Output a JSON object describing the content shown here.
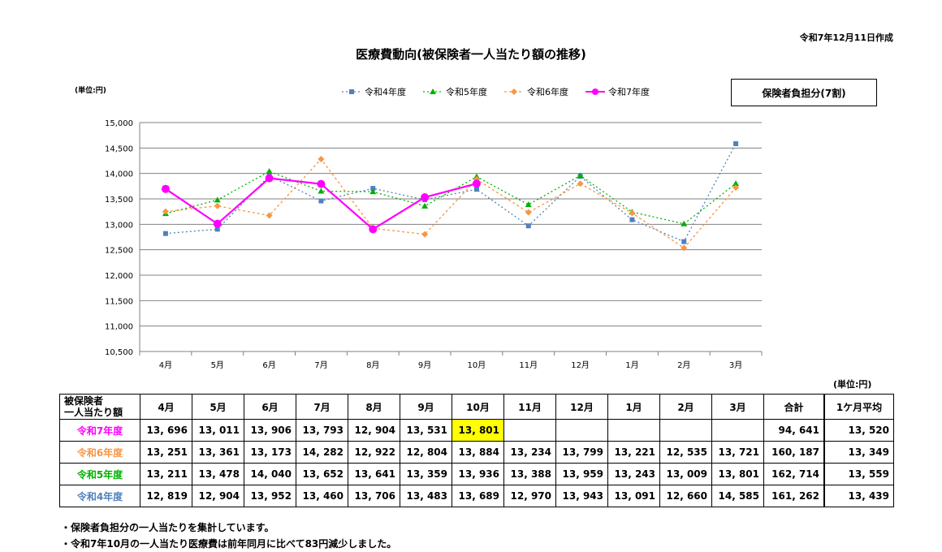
{
  "created_label": "令和7年12月11日作成",
  "title": "医療費動向(被保険者一人当たり額の推移)",
  "unit_chart": "(単位:円)",
  "badge": "保険者負担分(7割)",
  "unit_table": "(単位:円)",
  "colors": {
    "r4": "#4f81bd",
    "r5": "#00b000",
    "r6": "#f79646",
    "r7": "#ff00ff",
    "highlight": "#ffff00"
  },
  "chart_data": {
    "type": "line",
    "categories": [
      "4月",
      "5月",
      "6月",
      "7月",
      "8月",
      "9月",
      "10月",
      "11月",
      "12月",
      "1月",
      "2月",
      "3月"
    ],
    "ylim": [
      10500,
      15000
    ],
    "yticks": [
      "10,500",
      "11,000",
      "11,500",
      "12,000",
      "12,500",
      "13,000",
      "13,500",
      "14,000",
      "14,500",
      "15,000"
    ],
    "grid": true,
    "legend_position": "top",
    "series": [
      {
        "name": "令和4年度",
        "values": [
          12819,
          12904,
          13952,
          13460,
          13706,
          13483,
          13689,
          12970,
          13943,
          13091,
          12660,
          14585
        ]
      },
      {
        "name": "令和5年度",
        "values": [
          13211,
          13478,
          14040,
          13652,
          13641,
          13359,
          13936,
          13388,
          13959,
          13243,
          13009,
          13801
        ]
      },
      {
        "name": "令和6年度",
        "values": [
          13251,
          13361,
          13173,
          14282,
          12922,
          12804,
          13884,
          13234,
          13799,
          13221,
          12535,
          13721
        ]
      },
      {
        "name": "令和7年度",
        "values": [
          13696,
          13011,
          13906,
          13793,
          12904,
          13531,
          13801,
          null,
          null,
          null,
          null,
          null
        ]
      }
    ]
  },
  "table": {
    "header_label_line1": "被保険者",
    "header_label_line2": "一人当たり額",
    "months": [
      "4月",
      "5月",
      "6月",
      "7月",
      "8月",
      "9月",
      "10月",
      "11月",
      "12月",
      "1月",
      "2月",
      "3月"
    ],
    "total_label": "合計",
    "avg_label": "1ケ月平均",
    "rows": [
      {
        "label": "令和7年度",
        "cells": [
          "13, 696",
          "13, 011",
          "13, 906",
          "13, 793",
          "12, 904",
          "13, 531",
          "13, 801",
          "",
          "",
          "",
          "",
          ""
        ],
        "total": "94, 641",
        "avg": "13, 520"
      },
      {
        "label": "令和6年度",
        "cells": [
          "13, 251",
          "13, 361",
          "13, 173",
          "14, 282",
          "12, 922",
          "12, 804",
          "13, 884",
          "13, 234",
          "13, 799",
          "13, 221",
          "12, 535",
          "13, 721"
        ],
        "total": "160, 187",
        "avg": "13, 349"
      },
      {
        "label": "令和5年度",
        "cells": [
          "13, 211",
          "13, 478",
          "14, 040",
          "13, 652",
          "13, 641",
          "13, 359",
          "13, 936",
          "13, 388",
          "13, 959",
          "13, 243",
          "13, 009",
          "13, 801"
        ],
        "total": "162, 714",
        "avg": "13, 559"
      },
      {
        "label": "令和4年度",
        "cells": [
          "12, 819",
          "12, 904",
          "13, 952",
          "13, 460",
          "13, 706",
          "13, 483",
          "13, 689",
          "12, 970",
          "13, 943",
          "13, 091",
          "12, 660",
          "14, 585"
        ],
        "total": "161, 262",
        "avg": "13, 439"
      }
    ]
  },
  "notes": [
    "・保険者負担分の一人当たりを集計しています。",
    "・令和7年10月の一人当たり医療費は前年同月に比べて83円減少しました。"
  ]
}
